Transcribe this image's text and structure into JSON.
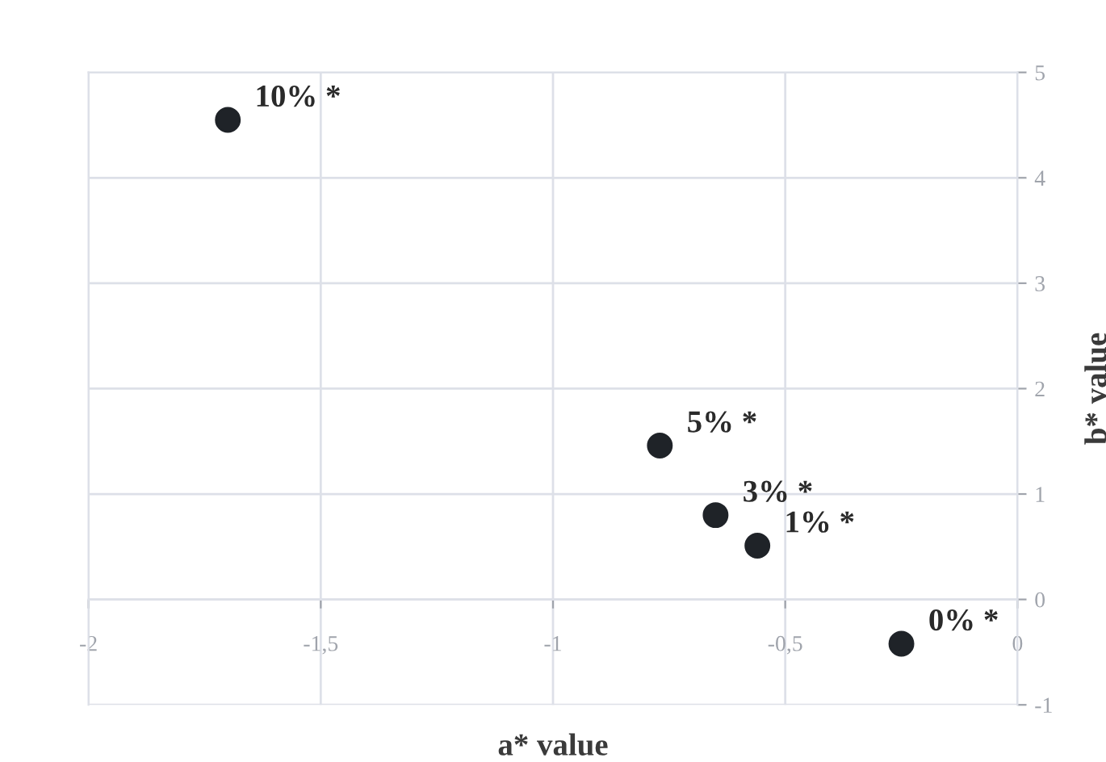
{
  "chart_data": {
    "type": "scatter",
    "xlabel": "a* value",
    "ylabel": "b* value",
    "x": [
      -1.7,
      -0.77,
      -0.65,
      -0.56,
      -0.25
    ],
    "series": [
      {
        "color": "#1f2328",
        "values": [
          4.55,
          1.46,
          0.8,
          0.51,
          -0.42
        ]
      }
    ],
    "annotations": [
      {
        "text": "10% *",
        "x": -1.7,
        "y": 4.55
      },
      {
        "text": "5% *",
        "x": -0.77,
        "y": 1.46
      },
      {
        "text": "3% *",
        "x": -0.65,
        "y": 0.8
      },
      {
        "text": "1% *",
        "x": -0.56,
        "y": 0.51
      },
      {
        "text": "0% *",
        "x": -0.25,
        "y": -0.42
      }
    ],
    "xlim": [
      -2,
      0
    ],
    "xticks": [
      {
        "value": -2,
        "label": "-2"
      },
      {
        "value": -1.5,
        "label": "-1,5"
      },
      {
        "value": -1,
        "label": "-1"
      },
      {
        "value": -0.5,
        "label": "-0,5"
      },
      {
        "value": 0,
        "label": "0"
      }
    ],
    "ylim": [
      -1,
      5
    ],
    "yticks": [
      {
        "value": -1,
        "label": "-1"
      },
      0,
      1,
      2,
      3,
      4,
      5
    ],
    "grid": true,
    "marker": "circle"
  }
}
